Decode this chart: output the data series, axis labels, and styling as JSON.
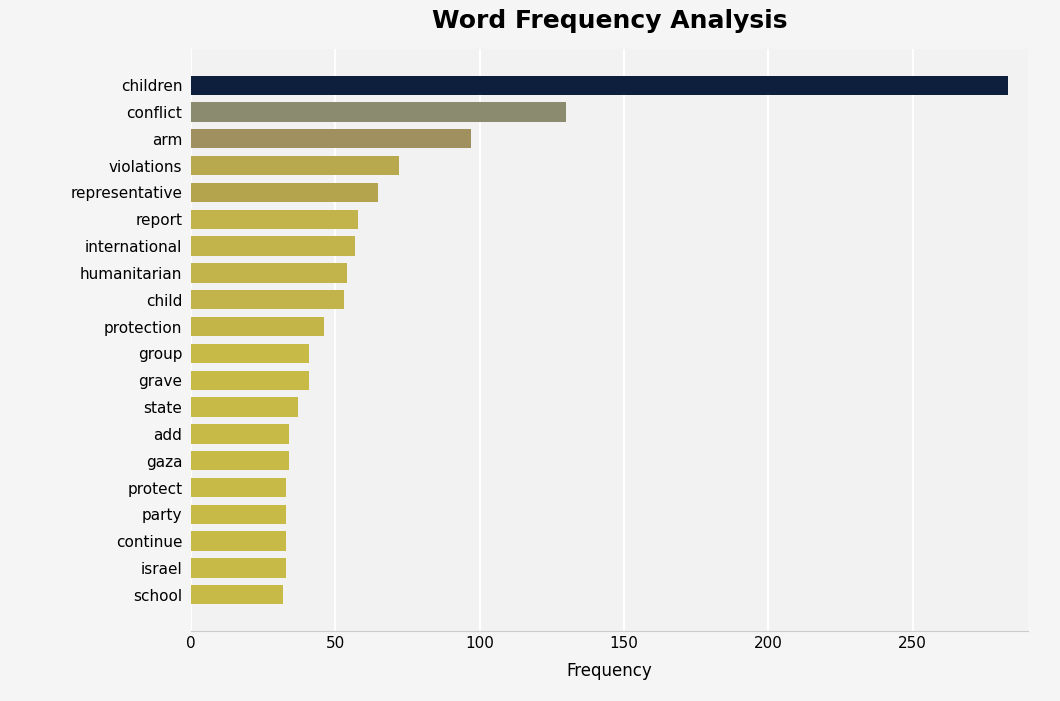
{
  "title": "Word Frequency Analysis",
  "xlabel": "Frequency",
  "categories": [
    "children",
    "conflict",
    "arm",
    "violations",
    "representative",
    "report",
    "international",
    "humanitarian",
    "child",
    "protection",
    "group",
    "grave",
    "state",
    "add",
    "gaza",
    "protect",
    "party",
    "continue",
    "israel",
    "school"
  ],
  "values": [
    283,
    130,
    97,
    72,
    65,
    58,
    57,
    54,
    53,
    46,
    41,
    41,
    37,
    34,
    34,
    33,
    33,
    33,
    33,
    32
  ],
  "bar_colors": [
    "#0d1f3c",
    "#8b8b70",
    "#a09060",
    "#b8a84e",
    "#b5a44e",
    "#c2b34a",
    "#c2b34a",
    "#c2b34a",
    "#c2b34a",
    "#c4b548",
    "#c8ba46",
    "#c8ba46",
    "#c8ba46",
    "#c8ba46",
    "#c8ba46",
    "#c8ba46",
    "#c8ba46",
    "#c8ba46",
    "#c8ba46",
    "#c8ba46"
  ],
  "background_color": "#f5f5f5",
  "plot_bg_color": "#f2f2f2",
  "title_fontsize": 18,
  "xlabel_fontsize": 12,
  "tick_fontsize": 11,
  "xlim": [
    0,
    290
  ],
  "xticks": [
    0,
    50,
    100,
    150,
    200,
    250
  ],
  "bar_height": 0.72,
  "figsize": [
    10.6,
    7.01
  ],
  "dpi": 100
}
